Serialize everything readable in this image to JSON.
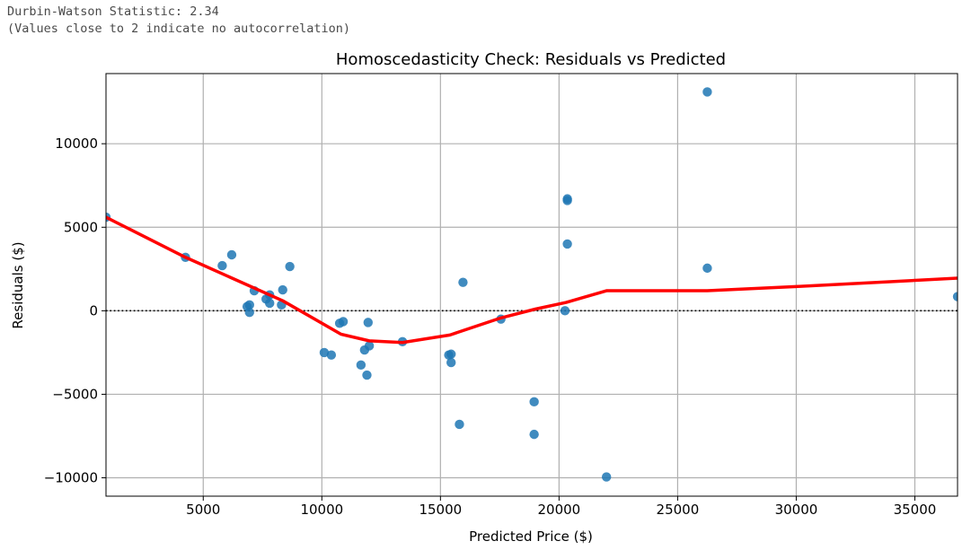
{
  "console_output": {
    "line1": "Durbin-Watson Statistic: 2.34",
    "line2": "(Values close to 2 indicate no autocorrelation)"
  },
  "chart_data": {
    "type": "scatter",
    "title": "Homoscedasticity Check: Residuals vs Predicted",
    "xlabel": "Predicted Price ($)",
    "ylabel": "Residuals ($)",
    "xlim": [
      900,
      36800
    ],
    "ylim": [
      -11100,
      14200
    ],
    "xticks": [
      5000,
      10000,
      15000,
      20000,
      25000,
      30000,
      35000
    ],
    "xtick_labels": [
      "5000",
      "10000",
      "15000",
      "20000",
      "25000",
      "30000",
      "35000"
    ],
    "yticks": [
      -10000,
      -5000,
      0,
      5000,
      10000
    ],
    "ytick_labels": [
      "−10000",
      "−5000",
      "0",
      "5000",
      "10000"
    ],
    "grid": true,
    "reference_line": {
      "y": 0,
      "style": "dotted",
      "color": "#000000"
    },
    "colors": {
      "points": "#1f77b4",
      "trend": "#ff0000"
    },
    "points": [
      {
        "x": 900,
        "y": 5600
      },
      {
        "x": 4250,
        "y": 3200
      },
      {
        "x": 5800,
        "y": 2700
      },
      {
        "x": 6200,
        "y": 3350
      },
      {
        "x": 6850,
        "y": 250
      },
      {
        "x": 6950,
        "y": 350
      },
      {
        "x": 6950,
        "y": -100
      },
      {
        "x": 7150,
        "y": 1200
      },
      {
        "x": 7650,
        "y": 700
      },
      {
        "x": 7800,
        "y": 950
      },
      {
        "x": 7800,
        "y": 450
      },
      {
        "x": 8300,
        "y": 350
      },
      {
        "x": 8350,
        "y": 1250
      },
      {
        "x": 8650,
        "y": 2650
      },
      {
        "x": 10100,
        "y": -2500
      },
      {
        "x": 10400,
        "y": -2650
      },
      {
        "x": 10750,
        "y": -750
      },
      {
        "x": 10900,
        "y": -650
      },
      {
        "x": 11650,
        "y": -3250
      },
      {
        "x": 11800,
        "y": -2350
      },
      {
        "x": 11900,
        "y": -3850
      },
      {
        "x": 11950,
        "y": -700
      },
      {
        "x": 12000,
        "y": -2100
      },
      {
        "x": 13400,
        "y": -1850
      },
      {
        "x": 15350,
        "y": -2650
      },
      {
        "x": 15450,
        "y": -2600
      },
      {
        "x": 15450,
        "y": -3100
      },
      {
        "x": 15800,
        "y": -6800
      },
      {
        "x": 15950,
        "y": 1700
      },
      {
        "x": 17550,
        "y": -500
      },
      {
        "x": 18950,
        "y": -5450
      },
      {
        "x": 18950,
        "y": -7400
      },
      {
        "x": 20250,
        "y": 0
      },
      {
        "x": 20350,
        "y": 4000
      },
      {
        "x": 20350,
        "y": 6600
      },
      {
        "x": 20350,
        "y": 6700
      },
      {
        "x": 22000,
        "y": -9950
      },
      {
        "x": 26250,
        "y": 13100
      },
      {
        "x": 26250,
        "y": 2550
      },
      {
        "x": 36800,
        "y": 850
      }
    ],
    "trend_line": {
      "x": [
        900,
        4250,
        8350,
        10800,
        12000,
        13400,
        15400,
        17500,
        19000,
        20300,
        22000,
        26250,
        30000,
        36800
      ],
      "y": [
        5600,
        3200,
        600,
        -1400,
        -1800,
        -1900,
        -1450,
        -450,
        100,
        500,
        1200,
        1200,
        1450,
        1950
      ]
    }
  }
}
